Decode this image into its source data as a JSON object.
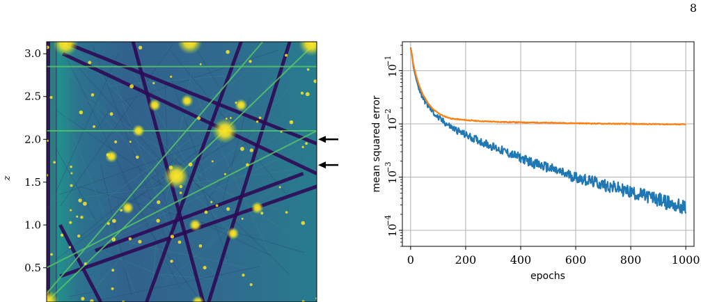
{
  "page": {
    "number": "8"
  },
  "chart_data": [
    {
      "type": "heatmap",
      "description_free": true,
      "title": "",
      "xlabel": "",
      "ylabel": "z",
      "ylim": [
        0.1,
        3.14
      ],
      "yticks": [
        "0.5",
        "1.0",
        "1.5",
        "2.0",
        "2.5",
        "3.0"
      ],
      "ytick_values": [
        0.5,
        1.0,
        1.5,
        2.0,
        2.5,
        3.0
      ],
      "colormap": "viridis",
      "arrow_markers_z": [
        2.0,
        1.7
      ],
      "line_families": [
        {
          "kind": "dark",
          "segments": [
            [
              0.06,
              3.14,
              1.0,
              1.95
            ],
            [
              0.06,
              3.0,
              1.0,
              1.6
            ],
            [
              0.37,
              0.1,
              0.72,
              3.14
            ],
            [
              0.58,
              0.1,
              0.32,
              3.14
            ],
            [
              0.2,
              0.1,
              0.05,
              1.0
            ],
            [
              0.6,
              0.1,
              0.9,
              3.14
            ],
            [
              0.18,
              0.7,
              0.95,
              1.6
            ],
            [
              0.05,
              0.4,
              1.0,
              1.45
            ]
          ]
        },
        {
          "kind": "bright",
          "segments": [
            [
              0.0,
              0.1,
              1.0,
              3.14
            ],
            [
              0.0,
              0.2,
              0.8,
              3.14
            ],
            [
              0.0,
              0.5,
              1.0,
              2.1
            ],
            [
              0.0,
              2.1,
              1.0,
              2.1
            ],
            [
              0.0,
              2.85,
              1.0,
              2.85
            ]
          ]
        }
      ],
      "hotspots": [
        [
          0.0,
          0.1
        ],
        [
          0.07,
          3.12
        ],
        [
          0.98,
          3.12
        ],
        [
          0.53,
          3.14
        ],
        [
          0.66,
          2.1
        ],
        [
          0.48,
          1.57
        ],
        [
          0.34,
          2.1
        ],
        [
          0.56,
          0.1
        ],
        [
          0.69,
          0.9
        ],
        [
          0.78,
          1.2
        ],
        [
          0.4,
          2.4
        ],
        [
          0.52,
          2.45
        ],
        [
          0.72,
          2.4
        ],
        [
          0.3,
          1.2
        ],
        [
          0.55,
          1.0
        ],
        [
          0.24,
          1.8
        ]
      ]
    },
    {
      "type": "line",
      "title": "",
      "xlabel": "epochs",
      "ylabel": "mean squared error",
      "xlim": [
        -30,
        1030
      ],
      "ylim": [
        5e-05,
        0.35
      ],
      "yscale": "log",
      "grid": true,
      "xticks": [
        "0",
        "200",
        "400",
        "600",
        "800",
        "1000"
      ],
      "xtick_values": [
        0,
        200,
        400,
        600,
        800,
        1000
      ],
      "yticks": [
        "10",
        "10",
        "10",
        "10"
      ],
      "ytick_exponents": [
        "−4",
        "−3",
        "−2",
        "−1"
      ],
      "ytick_values": [
        0.0001,
        0.001,
        0.01,
        0.1
      ],
      "series": [
        {
          "color": "#ff7f0e",
          "x": [
            0,
            5,
            10,
            20,
            30,
            40,
            50,
            60,
            80,
            100,
            120,
            150,
            200,
            250,
            300,
            400,
            500,
            600,
            700,
            800,
            900,
            1000
          ],
          "y": [
            0.27,
            0.2,
            0.13,
            0.08,
            0.055,
            0.04,
            0.032,
            0.026,
            0.019,
            0.016,
            0.014,
            0.0125,
            0.0118,
            0.0113,
            0.011,
            0.0107,
            0.0105,
            0.0103,
            0.0101,
            0.01,
            0.0099,
            0.0098
          ],
          "noise": 0.02
        },
        {
          "color": "#1f77b4",
          "x": [
            0,
            5,
            10,
            20,
            30,
            40,
            50,
            60,
            80,
            100,
            120,
            150,
            200,
            250,
            300,
            350,
            400,
            450,
            500,
            550,
            600,
            650,
            700,
            750,
            800,
            850,
            900,
            940,
            960,
            980,
            1000
          ],
          "y": [
            0.27,
            0.2,
            0.12,
            0.07,
            0.047,
            0.035,
            0.028,
            0.023,
            0.017,
            0.013,
            0.011,
            0.0085,
            0.0062,
            0.0048,
            0.0037,
            0.0029,
            0.0023,
            0.0018,
            0.0015,
            0.0012,
            0.001,
            0.00085,
            0.00072,
            0.00062,
            0.00052,
            0.00045,
            0.00038,
            0.00032,
            0.0003,
            0.00028,
            0.00026
          ],
          "noise": 0.12
        }
      ]
    }
  ]
}
